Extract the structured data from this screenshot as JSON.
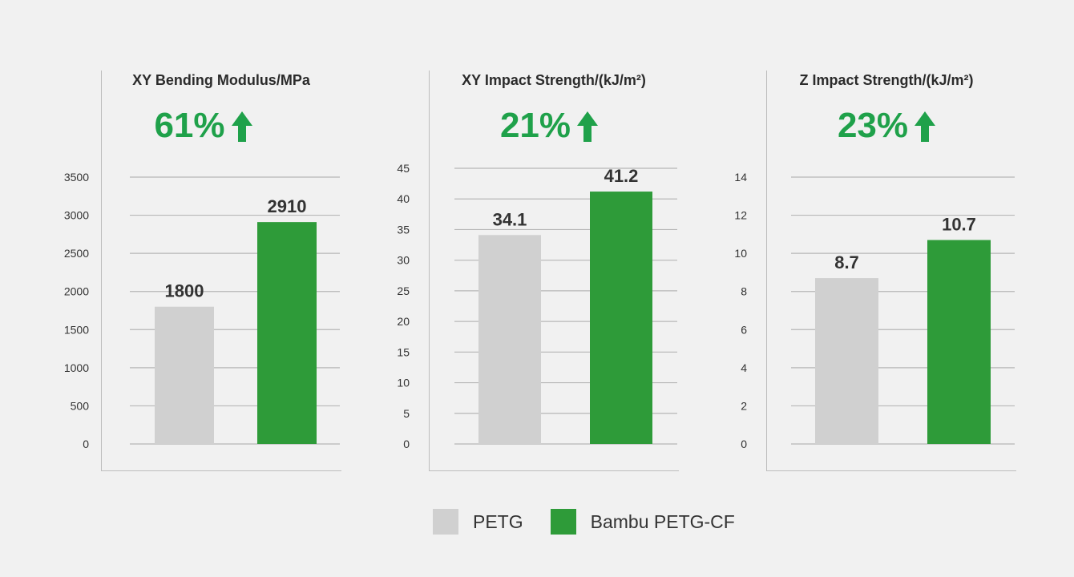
{
  "colors": {
    "background": "#f1f1f1",
    "accent": "#1fa14a",
    "petg": "#d0d0d0",
    "petg_cf": "#2e9b39",
    "grid": "#b7b7b7"
  },
  "legend": {
    "items": [
      {
        "label": "PETG",
        "color": "#d0d0d0"
      },
      {
        "label": "Bambu PETG-CF",
        "color": "#2e9b39"
      }
    ]
  },
  "chart_data": [
    {
      "type": "bar",
      "title": "XY Bending Modulus/MPa",
      "increase": "61%",
      "categories": [
        "PETG",
        "Bambu PETG-CF"
      ],
      "values": [
        1800,
        2910
      ],
      "value_labels": [
        "1800",
        "2910"
      ],
      "ylim": [
        0,
        3500
      ],
      "yticks": [
        0,
        500,
        1000,
        1500,
        2000,
        2500,
        3000,
        3500
      ],
      "grid": true
    },
    {
      "type": "bar",
      "title": "XY Impact Strength/(kJ/m²)",
      "increase": "21%",
      "categories": [
        "PETG",
        "Bambu PETG-CF"
      ],
      "values": [
        34.1,
        41.2
      ],
      "value_labels": [
        "34.1",
        "41.2"
      ],
      "ylim": [
        0,
        45
      ],
      "yticks": [
        0,
        5,
        10,
        15,
        20,
        25,
        30,
        35,
        40,
        45
      ],
      "grid": true
    },
    {
      "type": "bar",
      "title": "Z Impact Strength/(kJ/m²)",
      "increase": "23%",
      "categories": [
        "PETG",
        "Bambu PETG-CF"
      ],
      "values": [
        8.7,
        10.7
      ],
      "value_labels": [
        "8.7",
        "10.7"
      ],
      "ylim": [
        0,
        14
      ],
      "yticks": [
        0,
        2,
        4,
        6,
        8,
        10,
        12,
        14
      ],
      "grid": true
    }
  ]
}
